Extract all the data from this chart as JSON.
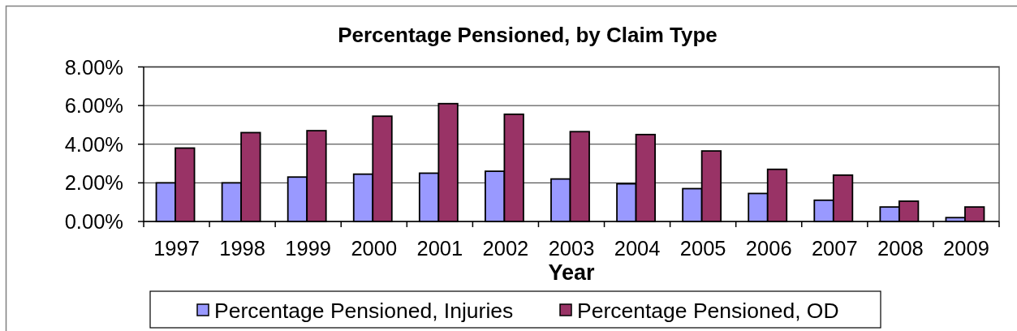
{
  "chart_data": {
    "type": "bar",
    "title": "Percentage Pensioned, by Claim Type",
    "xlabel": "Year",
    "categories": [
      "1997",
      "1998",
      "1999",
      "2000",
      "2001",
      "2002",
      "2003",
      "2004",
      "2005",
      "2006",
      "2007",
      "2008",
      "2009"
    ],
    "series": [
      {
        "name": "Percentage Pensioned, Injuries",
        "color": "#9999ff",
        "values": [
          2.0,
          2.0,
          2.3,
          2.45,
          2.5,
          2.6,
          2.2,
          1.95,
          1.7,
          1.45,
          1.1,
          0.75,
          0.2
        ]
      },
      {
        "name": "Percentage Pensioned, OD",
        "color": "#993366",
        "values": [
          3.8,
          4.6,
          4.7,
          5.45,
          6.1,
          5.55,
          4.65,
          4.5,
          3.65,
          2.7,
          2.4,
          1.05,
          0.75
        ]
      }
    ],
    "ylim": [
      0,
      8
    ],
    "yticks": [
      {
        "value": 0,
        "label": "0.00%"
      },
      {
        "value": 2,
        "label": "2.00%"
      },
      {
        "value": 4,
        "label": "4.00%"
      },
      {
        "value": 6,
        "label": "6.00%"
      },
      {
        "value": 8,
        "label": "8.00%"
      }
    ],
    "grid": "y",
    "legend": "bottom"
  }
}
